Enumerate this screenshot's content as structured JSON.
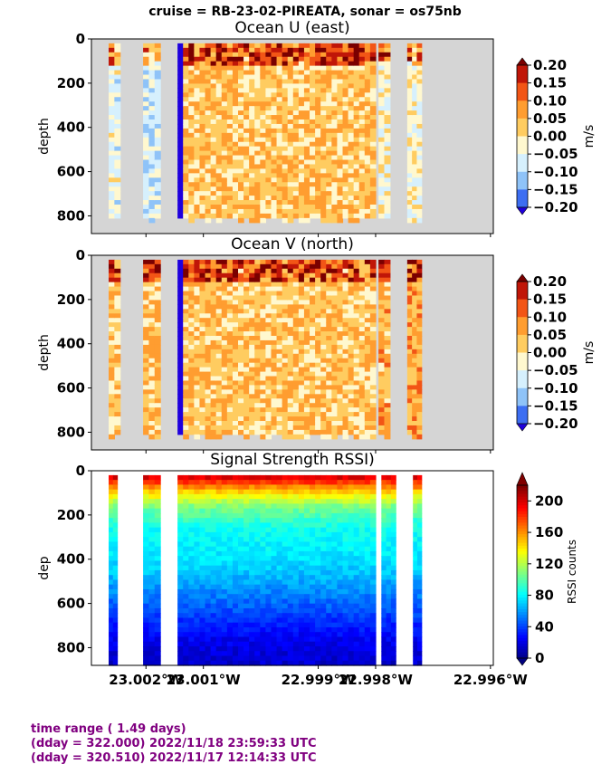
{
  "suptitle": "cruise = RB-23-02-PIREATA,  sonar = os75nb",
  "colors": {
    "missing": "#d5d5d5",
    "footer": "#800080"
  },
  "chart_data": [
    {
      "type": "heatmap",
      "title": "Ocean U (east)",
      "ylabel": "depth",
      "ylim": [
        880,
        0
      ],
      "yticks": [
        "0",
        "200",
        "400",
        "600",
        "800"
      ],
      "colorbar": {
        "label": "m/s",
        "ticks": [
          "0.20",
          "0.15",
          "0.10",
          "0.05",
          "0.00",
          "−0.05",
          "−0.10",
          "−0.15",
          "−0.20"
        ],
        "range": [
          -0.2,
          0.2
        ],
        "colors": [
          "#1f00dd",
          "#3d6ef2",
          "#8fc3f8",
          "#d6f0fd",
          "#fff8cf",
          "#ffcc60",
          "#ff9d30",
          "#f25516",
          "#c01608",
          "#7a0000"
        ]
      },
      "segments": [
        {
          "lon_start": -23.00265,
          "lon_end": -23.00245,
          "mean": -0.05
        },
        {
          "lon_start": -23.00205,
          "lon_end": -23.00175,
          "mean": -0.08
        },
        {
          "lon_start": -23.00145,
          "lon_end": -22.998,
          "mean": 0.03
        },
        {
          "lon_start": -22.99795,
          "lon_end": -22.99775,
          "mean": -0.02
        },
        {
          "lon_start": -22.99745,
          "lon_end": -22.9972,
          "mean": -0.03
        }
      ]
    },
    {
      "type": "heatmap",
      "title": "Ocean V (north)",
      "ylabel": "depth",
      "ylim": [
        880,
        0
      ],
      "yticks": [
        "0",
        "200",
        "400",
        "600",
        "800"
      ],
      "colorbar": {
        "label": "m/s",
        "ticks": [
          "0.20",
          "0.15",
          "0.10",
          "0.05",
          "0.00",
          "−0.05",
          "−0.10",
          "−0.15",
          "−0.20"
        ],
        "range": [
          -0.2,
          0.2
        ],
        "colors": [
          "#1f00dd",
          "#3d6ef2",
          "#8fc3f8",
          "#d6f0fd",
          "#fff8cf",
          "#ffcc60",
          "#ff9d30",
          "#f25516",
          "#c01608",
          "#7a0000"
        ]
      },
      "segments": [
        {
          "lon_start": -23.00265,
          "lon_end": -23.00245,
          "mean": 0.02
        },
        {
          "lon_start": -23.00205,
          "lon_end": -23.00175,
          "mean": 0.04
        },
        {
          "lon_start": -23.00145,
          "lon_end": -22.998,
          "mean": 0.03
        },
        {
          "lon_start": -22.99795,
          "lon_end": -22.99775,
          "mean": 0.05
        },
        {
          "lon_start": -22.99745,
          "lon_end": -22.9972,
          "mean": 0.06
        }
      ]
    },
    {
      "type": "heatmap",
      "title": "Signal Strength RSSI)",
      "ylabel": "dep",
      "ylim": [
        880,
        0
      ],
      "yticks": [
        "0",
        "200",
        "400",
        "600",
        "800"
      ],
      "xlabel": "",
      "xticks": [
        "23.002°W",
        "23.001°W",
        "22.999°W",
        "22.998°W",
        "22.996°W"
      ],
      "xtick_values": [
        -23.002,
        -23.001,
        -22.999,
        -22.998,
        -22.996
      ],
      "colorbar": {
        "label": "RSSI counts",
        "ticks": [
          "200",
          "160",
          "120",
          "80",
          "40",
          "0"
        ],
        "range": [
          0,
          220
        ]
      },
      "segments": [
        {
          "lon_start": -23.00265,
          "lon_end": -23.0025
        },
        {
          "lon_start": -23.00205,
          "lon_end": -23.00175
        },
        {
          "lon_start": -23.00145,
          "lon_end": -22.998
        },
        {
          "lon_start": -22.9979,
          "lon_end": -22.99765
        },
        {
          "lon_start": -22.99735,
          "lon_end": -22.9972
        }
      ],
      "profile": [
        [
          0,
          215
        ],
        [
          30,
          190
        ],
        [
          80,
          150
        ],
        [
          150,
          110
        ],
        [
          250,
          85
        ],
        [
          350,
          80
        ],
        [
          450,
          70
        ],
        [
          550,
          55
        ],
        [
          650,
          40
        ],
        [
          750,
          25
        ],
        [
          880,
          15
        ]
      ]
    }
  ],
  "footer": {
    "line1": "time range ( 1.49 days)",
    "line2": "(dday = 322.000) 2022/11/18 23:59:33 UTC",
    "line3": "(dday = 320.510) 2022/11/17 12:14:33 UTC"
  }
}
